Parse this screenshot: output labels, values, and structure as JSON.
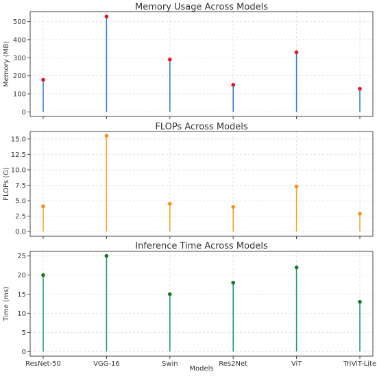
{
  "chart_data": [
    {
      "type": "stem",
      "title": "Memory Usage Across Models",
      "ylabel": "Memory (MB)",
      "xlabel": "",
      "categories": [
        "ResNet-50",
        "VGG-16",
        "Swin",
        "Res2Net",
        "ViT",
        "TriViT-Lite"
      ],
      "values": [
        178,
        528,
        290,
        150,
        330,
        128
      ],
      "ylim": [
        -25,
        555
      ],
      "yticks": [
        0,
        100,
        200,
        300,
        400,
        500
      ],
      "ytick_labels": [
        "0",
        "100",
        "200",
        "300",
        "400",
        "500"
      ],
      "show_xticklabels": false,
      "grid": true,
      "stem_color": "#3b7dd8",
      "marker_color": "#e8161e"
    },
    {
      "type": "stem",
      "title": "FLOPs Across Models",
      "ylabel": "FLOPs (G)",
      "xlabel": "",
      "categories": [
        "ResNet-50",
        "VGG-16",
        "Swin",
        "Res2Net",
        "ViT",
        "TriViT-Lite"
      ],
      "values": [
        4.1,
        15.5,
        4.5,
        4.0,
        7.3,
        2.9
      ],
      "ylim": [
        -0.75,
        16.2
      ],
      "yticks": [
        0,
        2.5,
        5,
        7.5,
        10,
        12.5,
        15
      ],
      "ytick_labels": [
        "0.0",
        "2.5",
        "5.0",
        "7.5",
        "10.0",
        "12.5",
        "15.0"
      ],
      "show_xticklabels": false,
      "grid": true,
      "stem_color": "#f5a623",
      "marker_color": "#f5901e"
    },
    {
      "type": "stem",
      "title": "Inference Time Across Models",
      "ylabel": "Time (ms)",
      "xlabel": "Models",
      "categories": [
        "ResNet-50",
        "VGG-16",
        "Swin",
        "Res2Net",
        "ViT",
        "TriViT-Lite"
      ],
      "values": [
        20,
        25,
        15,
        18,
        22,
        13
      ],
      "ylim": [
        -1.2,
        26.2
      ],
      "yticks": [
        0,
        5,
        10,
        15,
        20,
        25
      ],
      "ytick_labels": [
        "0",
        "5",
        "10",
        "15",
        "20",
        "25"
      ],
      "show_xticklabels": true,
      "grid": true,
      "stem_color": "#1f9e6e",
      "marker_color": "#137a1e"
    }
  ]
}
